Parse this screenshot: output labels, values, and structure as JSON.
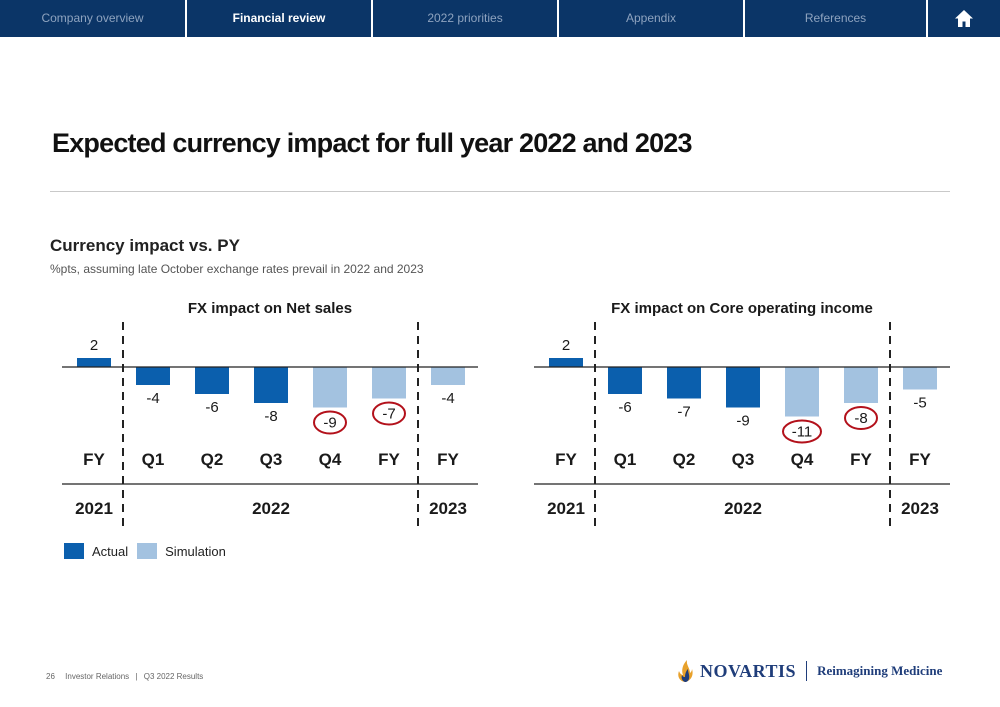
{
  "nav": {
    "tabs": [
      {
        "label": "Company overview",
        "active": false
      },
      {
        "label": "Financial review",
        "active": true
      },
      {
        "label": "2022 priorities",
        "active": false
      },
      {
        "label": "Appendix",
        "active": false
      },
      {
        "label": "References",
        "active": false
      }
    ],
    "home_icon": "home-icon"
  },
  "page": {
    "title": "Expected currency impact for full year 2022 and 2023",
    "subtitle": "Currency impact vs. PY",
    "subsubtitle": "%pts, assuming late October exchange rates prevail in 2022 and 2023"
  },
  "colors": {
    "actual": "#0b5fad",
    "simulation": "#a3c2e0",
    "highlight": "#b3111b",
    "navbar": "#0b3567"
  },
  "chart_data": [
    {
      "type": "bar",
      "title": "FX impact on Net sales",
      "categories": [
        "FY",
        "Q1",
        "Q2",
        "Q3",
        "Q4",
        "FY",
        "FY"
      ],
      "values": [
        2,
        -4,
        -6,
        -8,
        -9,
        -7,
        -4
      ],
      "series_kind": [
        "actual",
        "actual",
        "actual",
        "actual",
        "simulation",
        "simulation",
        "simulation"
      ],
      "circled": [
        false,
        false,
        false,
        false,
        true,
        true,
        false
      ],
      "year_labels": [
        "2021",
        "2022",
        "2023"
      ],
      "year_spans": [
        [
          0,
          0
        ],
        [
          1,
          5
        ],
        [
          6,
          6
        ]
      ]
    },
    {
      "type": "bar",
      "title": "FX impact on Core operating income",
      "categories": [
        "FY",
        "Q1",
        "Q2",
        "Q3",
        "Q4",
        "FY",
        "FY"
      ],
      "values": [
        2,
        -6,
        -7,
        -9,
        -11,
        -8,
        -5
      ],
      "series_kind": [
        "actual",
        "actual",
        "actual",
        "actual",
        "simulation",
        "simulation",
        "simulation"
      ],
      "circled": [
        false,
        false,
        false,
        false,
        true,
        true,
        false
      ],
      "year_labels": [
        "2021",
        "2022",
        "2023"
      ],
      "year_spans": [
        [
          0,
          0
        ],
        [
          1,
          5
        ],
        [
          6,
          6
        ]
      ]
    }
  ],
  "legend": {
    "actual": "Actual",
    "simulation": "Simulation"
  },
  "footer": {
    "page_number": "26",
    "section": "Investor Relations",
    "report": "Q3 2022 Results"
  },
  "logo": {
    "wordmark": "NOVARTIS",
    "tagline": "Reimagining Medicine"
  }
}
